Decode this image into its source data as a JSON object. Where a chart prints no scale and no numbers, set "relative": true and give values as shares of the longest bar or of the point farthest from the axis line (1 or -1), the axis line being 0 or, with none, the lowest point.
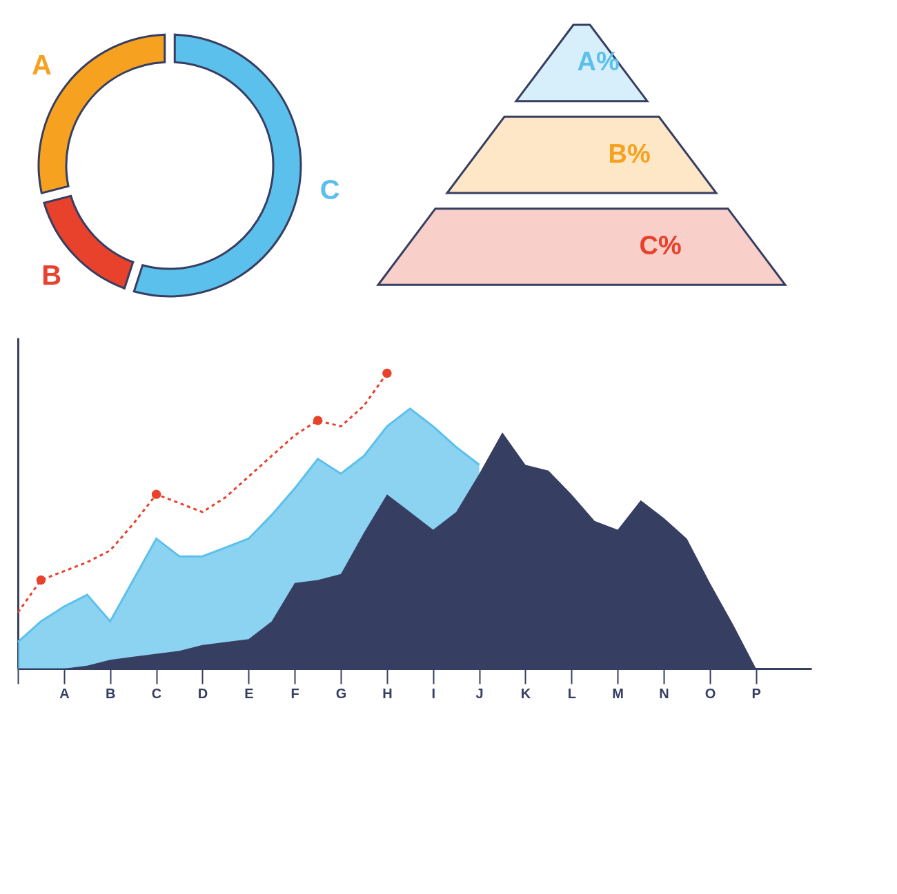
{
  "chart_data": [
    {
      "type": "donut",
      "categories": [
        "C",
        "B",
        "A"
      ],
      "values": [
        55,
        16,
        29
      ],
      "colors": [
        "#5bc0eb",
        "#e8412c",
        "#f6a11f"
      ]
    },
    {
      "type": "other",
      "categories": [
        "A%",
        "B%",
        "C%"
      ],
      "colors": [
        "#5bc0eb",
        "#f6a11f",
        "#e8412c"
      ]
    },
    {
      "type": "area",
      "relative": true,
      "categories": [
        null,
        null,
        "A",
        null,
        "B",
        null,
        "C",
        null,
        "D",
        null,
        "E",
        null,
        "F",
        null,
        "G",
        null,
        "H",
        null,
        "I",
        null,
        "J",
        null,
        "K",
        null,
        "L",
        null,
        "M",
        null,
        "N",
        null,
        "O",
        null,
        "P"
      ],
      "series": [
        {
          "type": "area",
          "color": "#5bc0eb",
          "values": [
            0.09,
            0.16,
            0.21,
            0.25,
            0.16,
            0.3,
            0.44,
            0.38,
            0.38,
            0.41,
            0.44,
            0.52,
            0.61,
            0.71,
            0.66,
            0.72,
            0.82,
            0.88,
            0.82,
            0.75,
            0.69,
            null,
            null,
            null,
            null,
            null,
            null,
            null,
            null,
            null,
            null,
            null,
            null
          ]
        },
        {
          "type": "area",
          "color": "#363e62",
          "values": [
            null,
            null,
            0,
            0.01,
            0.03,
            0.04,
            0.05,
            0.06,
            0.08,
            0.09,
            0.1,
            0.16,
            0.29,
            0.3,
            0.32,
            0.46,
            0.59,
            0.53,
            0.47,
            0.53,
            0.66,
            0.8,
            0.69,
            0.67,
            0.59,
            0.5,
            0.47,
            0.57,
            0.51,
            0.44,
            0.29,
            0.15,
            0
          ]
        },
        {
          "type": "line",
          "color": "#e8412c",
          "line_style": "dashed",
          "values": [
            0.19,
            0.3,
            0.33,
            0.36,
            0.4,
            0.49,
            0.59,
            0.56,
            0.53,
            0.58,
            0.65,
            0.72,
            0.79,
            0.84,
            0.82,
            0.89,
            1.0,
            null,
            null,
            null,
            null,
            null,
            null,
            null,
            null,
            null,
            null,
            null,
            null,
            null,
            null,
            null,
            null
          ]
        },
        {
          "type": "scatter",
          "color": "#e8412c",
          "marker": "circle",
          "values": [
            null,
            0.3,
            null,
            null,
            null,
            null,
            0.59,
            null,
            null,
            null,
            null,
            null,
            null,
            0.84,
            null,
            null,
            1.0,
            null,
            null,
            null,
            null,
            null,
            null,
            null,
            null,
            null,
            null,
            null,
            null,
            null,
            null,
            null,
            null
          ]
        }
      ]
    }
  ]
}
